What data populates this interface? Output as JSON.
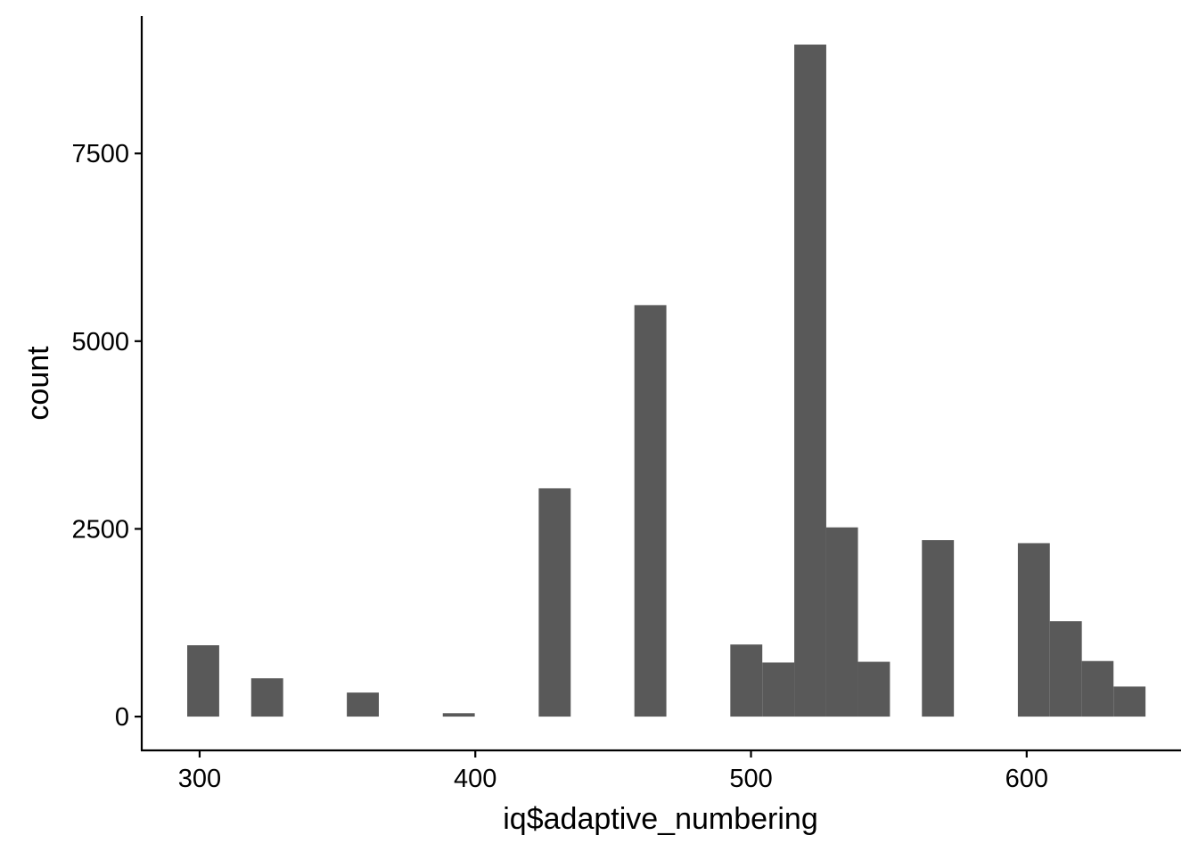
{
  "chart_data": {
    "type": "bar",
    "title": "",
    "xlabel": "iq$adaptive_numbering",
    "ylabel": "count",
    "xlim": [
      279,
      656
    ],
    "ylim": [
      -450,
      9330
    ],
    "x_ticks": [
      300,
      400,
      500,
      600
    ],
    "y_ticks": [
      0,
      2500,
      5000,
      7500
    ],
    "grid": false,
    "bar_color": "#595959",
    "bins": [
      {
        "x0": 295.5,
        "x1": 307.1,
        "count": 950
      },
      {
        "x0": 318.7,
        "x1": 330.3,
        "count": 510
      },
      {
        "x0": 353.4,
        "x1": 365.0,
        "count": 320
      },
      {
        "x0": 388.2,
        "x1": 399.8,
        "count": 45
      },
      {
        "x0": 423.0,
        "x1": 434.6,
        "count": 3040
      },
      {
        "x0": 457.7,
        "x1": 469.3,
        "count": 5480
      },
      {
        "x0": 492.5,
        "x1": 504.1,
        "count": 960
      },
      {
        "x0": 504.1,
        "x1": 515.7,
        "count": 720
      },
      {
        "x0": 515.7,
        "x1": 527.3,
        "count": 8950
      },
      {
        "x0": 527.3,
        "x1": 538.8,
        "count": 2520
      },
      {
        "x0": 538.8,
        "x1": 550.4,
        "count": 730
      },
      {
        "x0": 562.0,
        "x1": 573.6,
        "count": 2350
      },
      {
        "x0": 596.8,
        "x1": 608.4,
        "count": 2310
      },
      {
        "x0": 608.4,
        "x1": 620.0,
        "count": 1270
      },
      {
        "x0": 620.0,
        "x1": 631.5,
        "count": 740
      },
      {
        "x0": 631.5,
        "x1": 643.1,
        "count": 400
      }
    ]
  }
}
